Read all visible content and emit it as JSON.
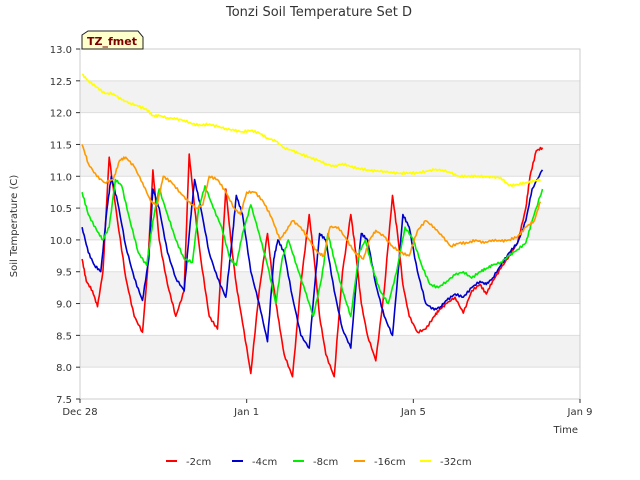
{
  "chart_data": {
    "type": "line",
    "title": "Tonzi Soil Temperature Set D",
    "xlabel": "Time",
    "ylabel": "Soil Temperature (C)",
    "xlim": [
      0,
      12
    ],
    "ylim": [
      7.5,
      13.0
    ],
    "x_unit": "days since Dec 28",
    "x_ticks": [
      {
        "value": 0,
        "label": "Dec 28"
      },
      {
        "value": 4,
        "label": "Jan 1"
      },
      {
        "value": 8,
        "label": "Jan 5"
      },
      {
        "value": 12,
        "label": "Jan 9"
      }
    ],
    "y_ticks": [
      7.5,
      8.0,
      8.5,
      9.0,
      9.5,
      10.0,
      10.5,
      11.0,
      11.5,
      12.0,
      12.5,
      13.0
    ],
    "grid": "horizontal banded",
    "annotation": "TZ_fmet",
    "legend_position": "bottom",
    "series": [
      {
        "name": "-2cm",
        "color": "#ff0000",
        "x": [
          0.05,
          0.15,
          0.3,
          0.42,
          0.55,
          0.7,
          0.9,
          1.1,
          1.3,
          1.5,
          1.62,
          1.75,
          1.9,
          2.1,
          2.3,
          2.5,
          2.62,
          2.75,
          2.9,
          3.1,
          3.3,
          3.5,
          3.62,
          3.75,
          3.9,
          4.1,
          4.3,
          4.5,
          4.62,
          4.75,
          4.9,
          5.1,
          5.3,
          5.5,
          5.62,
          5.75,
          5.9,
          6.1,
          6.3,
          6.5,
          6.62,
          6.75,
          6.9,
          7.1,
          7.3,
          7.5,
          7.62,
          7.75,
          7.9,
          8.1,
          8.3,
          8.5,
          8.62,
          8.8,
          9.0,
          9.2,
          9.4,
          9.6,
          9.75,
          9.9,
          10.1,
          10.3,
          10.5,
          10.7,
          10.8,
          10.95,
          11.1
        ],
        "y": [
          9.7,
          9.35,
          9.2,
          8.95,
          9.5,
          11.3,
          10.3,
          9.4,
          8.8,
          8.55,
          9.5,
          11.1,
          10.0,
          9.3,
          8.8,
          9.2,
          11.35,
          10.5,
          9.7,
          8.8,
          8.6,
          10.8,
          10.0,
          9.3,
          8.7,
          7.9,
          9.2,
          10.1,
          9.4,
          8.8,
          8.2,
          7.85,
          9.3,
          10.4,
          9.7,
          8.8,
          8.2,
          7.85,
          9.5,
          10.4,
          9.8,
          9.0,
          8.5,
          8.1,
          9.2,
          10.7,
          10.1,
          9.3,
          8.8,
          8.55,
          8.6,
          8.8,
          8.9,
          9.0,
          9.1,
          8.85,
          9.2,
          9.3,
          9.15,
          9.35,
          9.55,
          9.75,
          9.95,
          10.5,
          11.0,
          11.4,
          11.45
        ]
      },
      {
        "name": "-4cm",
        "color": "#0000cc",
        "x": [
          0.05,
          0.2,
          0.35,
          0.5,
          0.65,
          0.75,
          0.9,
          1.1,
          1.3,
          1.5,
          1.65,
          1.75,
          1.9,
          2.1,
          2.3,
          2.5,
          2.65,
          2.75,
          2.9,
          3.1,
          3.3,
          3.5,
          3.65,
          3.75,
          3.9,
          4.1,
          4.3,
          4.5,
          4.65,
          4.75,
          4.9,
          5.1,
          5.3,
          5.5,
          5.65,
          5.75,
          5.9,
          6.1,
          6.3,
          6.5,
          6.65,
          6.75,
          6.9,
          7.1,
          7.3,
          7.5,
          7.65,
          7.75,
          7.9,
          8.1,
          8.3,
          8.5,
          8.65,
          8.8,
          9.0,
          9.2,
          9.4,
          9.6,
          9.75,
          9.9,
          10.1,
          10.3,
          10.5,
          10.7,
          10.85,
          11.1
        ],
        "y": [
          10.2,
          9.8,
          9.6,
          9.5,
          10.5,
          11.0,
          10.6,
          9.9,
          9.4,
          9.05,
          9.7,
          10.8,
          10.5,
          9.8,
          9.4,
          9.2,
          10.3,
          10.95,
          10.5,
          9.8,
          9.4,
          9.1,
          10.0,
          10.7,
          10.4,
          9.5,
          9.0,
          8.4,
          9.7,
          10.0,
          9.8,
          9.1,
          8.5,
          8.3,
          9.4,
          10.1,
          10.0,
          9.2,
          8.6,
          8.3,
          9.5,
          10.1,
          10.0,
          9.3,
          8.8,
          8.5,
          9.6,
          10.4,
          10.2,
          9.5,
          9.0,
          8.9,
          8.95,
          9.05,
          9.15,
          9.1,
          9.25,
          9.35,
          9.3,
          9.4,
          9.6,
          9.8,
          9.95,
          10.3,
          10.8,
          11.1
        ]
      },
      {
        "name": "-8cm",
        "color": "#00ee00",
        "x": [
          0.05,
          0.2,
          0.4,
          0.55,
          0.7,
          0.85,
          1.0,
          1.2,
          1.4,
          1.6,
          1.75,
          1.9,
          2.1,
          2.3,
          2.5,
          2.7,
          2.85,
          3.0,
          3.2,
          3.4,
          3.6,
          3.75,
          3.9,
          4.1,
          4.3,
          4.5,
          4.7,
          4.85,
          5.0,
          5.2,
          5.4,
          5.6,
          5.8,
          5.95,
          6.1,
          6.3,
          6.5,
          6.7,
          6.85,
          7.0,
          7.2,
          7.4,
          7.6,
          7.8,
          8.0,
          8.2,
          8.4,
          8.6,
          8.8,
          9.0,
          9.2,
          9.4,
          9.6,
          9.75,
          9.9,
          10.1,
          10.3,
          10.5,
          10.7,
          10.85,
          11.1
        ],
        "y": [
          10.75,
          10.4,
          10.15,
          10.0,
          10.2,
          10.95,
          10.85,
          10.3,
          9.8,
          9.6,
          10.3,
          10.8,
          10.4,
          10.0,
          9.7,
          9.65,
          10.5,
          10.85,
          10.5,
          10.2,
          9.7,
          9.6,
          10.1,
          10.55,
          10.1,
          9.6,
          9.0,
          9.7,
          10.0,
          9.6,
          9.2,
          8.8,
          9.4,
          10.1,
          9.7,
          9.2,
          8.8,
          9.8,
          10.0,
          9.6,
          9.2,
          9.0,
          9.5,
          10.2,
          10.0,
          9.6,
          9.3,
          9.25,
          9.35,
          9.45,
          9.5,
          9.4,
          9.5,
          9.55,
          9.6,
          9.65,
          9.75,
          9.85,
          9.95,
          10.3,
          10.8
        ]
      },
      {
        "name": "-16cm",
        "color": "#ff9900",
        "x": [
          0.05,
          0.2,
          0.4,
          0.6,
          0.8,
          0.95,
          1.1,
          1.3,
          1.5,
          1.7,
          1.85,
          2.0,
          2.2,
          2.4,
          2.6,
          2.8,
          2.95,
          3.1,
          3.3,
          3.5,
          3.7,
          3.85,
          4.0,
          4.2,
          4.4,
          4.6,
          4.8,
          4.95,
          5.1,
          5.3,
          5.5,
          5.7,
          5.85,
          6.0,
          6.2,
          6.4,
          6.6,
          6.8,
          6.95,
          7.1,
          7.3,
          7.5,
          7.7,
          7.9,
          8.1,
          8.3,
          8.5,
          8.7,
          8.9,
          9.1,
          9.3,
          9.5,
          9.7,
          9.9,
          10.1,
          10.3,
          10.5,
          10.7,
          10.9,
          11.05
        ],
        "y": [
          11.5,
          11.2,
          11.0,
          10.9,
          10.95,
          11.25,
          11.3,
          11.15,
          10.9,
          10.6,
          10.55,
          11.0,
          10.9,
          10.75,
          10.6,
          10.5,
          10.55,
          11.0,
          10.95,
          10.75,
          10.5,
          10.4,
          10.75,
          10.75,
          10.6,
          10.35,
          10.0,
          10.15,
          10.3,
          10.2,
          10.0,
          9.8,
          9.75,
          10.2,
          10.2,
          10.0,
          9.8,
          9.7,
          10.0,
          10.15,
          10.05,
          9.9,
          9.8,
          9.75,
          10.15,
          10.3,
          10.2,
          10.05,
          9.9,
          9.95,
          9.95,
          10.0,
          9.95,
          10.0,
          9.98,
          10.0,
          10.05,
          10.2,
          10.3,
          10.6
        ]
      },
      {
        "name": "-32cm",
        "color": "#ffff00",
        "x": [
          0.05,
          0.2,
          0.4,
          0.6,
          0.8,
          1.0,
          1.2,
          1.4,
          1.6,
          1.75,
          1.9,
          2.1,
          2.3,
          2.5,
          2.7,
          2.9,
          3.1,
          3.3,
          3.5,
          3.7,
          3.9,
          4.1,
          4.3,
          4.5,
          4.7,
          4.9,
          5.1,
          5.3,
          5.5,
          5.7,
          5.9,
          6.1,
          6.3,
          6.5,
          6.7,
          6.9,
          7.1,
          7.3,
          7.5,
          7.7,
          7.9,
          8.1,
          8.3,
          8.5,
          8.7,
          8.9,
          9.1,
          9.3,
          9.5,
          9.7,
          9.9,
          10.1,
          10.3,
          10.5,
          10.7,
          10.9,
          11.05
        ],
        "y": [
          12.6,
          12.5,
          12.4,
          12.3,
          12.3,
          12.2,
          12.15,
          12.1,
          12.05,
          11.95,
          11.95,
          11.92,
          11.9,
          11.88,
          11.82,
          11.8,
          11.82,
          11.78,
          11.75,
          11.72,
          11.7,
          11.72,
          11.68,
          11.6,
          11.55,
          11.45,
          11.4,
          11.35,
          11.3,
          11.25,
          11.2,
          11.15,
          11.2,
          11.15,
          11.12,
          11.1,
          11.08,
          11.08,
          11.05,
          11.05,
          11.05,
          11.05,
          11.08,
          11.1,
          11.1,
          11.05,
          11.0,
          11.0,
          11.0,
          11.0,
          10.98,
          10.98,
          10.85,
          10.87,
          10.9,
          10.92,
          10.95
        ]
      }
    ]
  }
}
